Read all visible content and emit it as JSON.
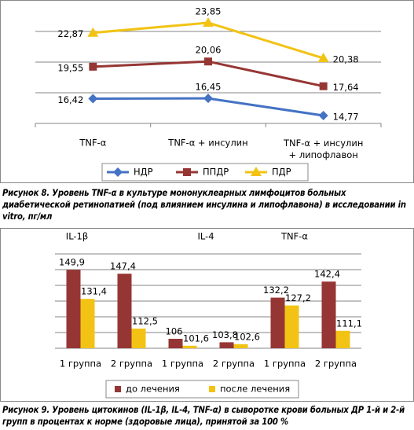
{
  "chart_data": [
    {
      "type": "line",
      "caption": "Рисунок 8. Уровень TNF-α в культуре мононуклеарных лимфоцитов больных диабетической ретинопатией (под влиянием инсулина и липофлавона) в исследовании in vitro, пг/мл",
      "categories": [
        "TNF-α",
        "TNF-α + инсулин",
        "TNF-α + инсулин\n+ липофлавон"
      ],
      "series": [
        {
          "name": "НДР",
          "color": "#4472c4",
          "marker": "diamond",
          "values": [
            16.42,
            16.45,
            14.77
          ],
          "value_labels": [
            "16,42",
            "16,45",
            "14,77"
          ]
        },
        {
          "name": "ППДР",
          "color": "#963634",
          "marker": "square",
          "values": [
            19.55,
            20.06,
            17.64
          ],
          "value_labels": [
            "19,55",
            "20,06",
            "17,64"
          ]
        },
        {
          "name": "ПДР",
          "color": "#f2c314",
          "marker": "triangle",
          "values": [
            22.87,
            23.85,
            20.38
          ],
          "value_labels": [
            "22,87",
            "23,85",
            "20,38"
          ]
        }
      ],
      "ylim": [
        14,
        25
      ],
      "yticks": [
        14,
        17,
        20,
        23
      ],
      "grid": true,
      "legend": "bottom"
    },
    {
      "type": "bar",
      "caption": "Рисунок 9. Уровень цитокинов (IL-1β, IL-4, TNF-α) в сыворотке крови больных ДР 1-й и 2-й групп в процентах к норме (здоровые лица), принятой за 100 %",
      "groups": [
        "IL-1β",
        "IL-4",
        "TNF-α"
      ],
      "categories": [
        "1 группа",
        "2 группа",
        "1 группа",
        "2 группа",
        "1 группа",
        "2 группа"
      ],
      "series": [
        {
          "name": "до лечения",
          "color": "#963634",
          "values": [
            149.9,
            147.4,
            106,
            103.8,
            132.2,
            142.4
          ],
          "value_labels": [
            "149,9",
            "147,4",
            "106",
            "103,8",
            "132,2",
            "142,4"
          ]
        },
        {
          "name": "после лечения",
          "color": "#f2c314",
          "values": [
            131.4,
            112.5,
            101.6,
            102.6,
            127.2,
            111.1
          ],
          "value_labels": [
            "131,4",
            "112,5",
            "101,6",
            "102,6",
            "127,2",
            "111,1"
          ]
        }
      ],
      "ylim": [
        100,
        160
      ],
      "yticks": [
        100,
        110,
        120,
        130,
        140,
        150,
        160
      ],
      "grid": true,
      "legend": "bottom"
    }
  ]
}
